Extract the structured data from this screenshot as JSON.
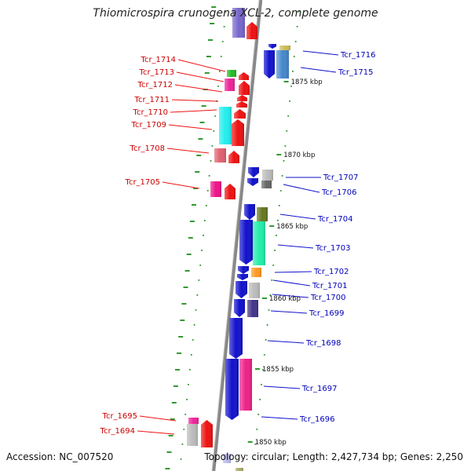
{
  "title": "Thiomicrospira crunogena XCL-2, complete genome",
  "accession": "Accession: NC_007520",
  "summary": "Topology: circular; Length: 2,427,734 bp; Genes: 2,250",
  "colors": {
    "minus_strand": "#ee1111",
    "plus_strand": "#1111cc",
    "backbone": "#888888",
    "tick": "#339933"
  },
  "scale_labels": [
    {
      "text": "1875 kbp"
    },
    {
      "text": "1870 kbp"
    },
    {
      "text": "1865 kbp"
    },
    {
      "text": "1860 kbp"
    },
    {
      "text": "1855 kbp"
    },
    {
      "text": "1850 kbp"
    }
  ],
  "left_genes": [
    {
      "name": "Tcr_1714"
    },
    {
      "name": "Tcr_1713"
    },
    {
      "name": "Tcr_1712"
    },
    {
      "name": "Tcr_1711"
    },
    {
      "name": "Tcr_1710"
    },
    {
      "name": "Tcr_1709"
    },
    {
      "name": "Tcr_1708"
    },
    {
      "name": "Tcr_1705"
    },
    {
      "name": "Tcr_1695"
    },
    {
      "name": "Tcr_1694"
    }
  ],
  "right_genes": [
    {
      "name": "Tcr_1716"
    },
    {
      "name": "Tcr_1715"
    },
    {
      "name": "Tcr_1707"
    },
    {
      "name": "Tcr_1706"
    },
    {
      "name": "Tcr_1704"
    },
    {
      "name": "Tcr_1703"
    },
    {
      "name": "Tcr_1702"
    },
    {
      "name": "Tcr_1701"
    },
    {
      "name": "Tcr_1700"
    },
    {
      "name": "Tcr_1699"
    },
    {
      "name": "Tcr_1698"
    },
    {
      "name": "Tcr_1697"
    },
    {
      "name": "Tcr_1696"
    }
  ]
}
